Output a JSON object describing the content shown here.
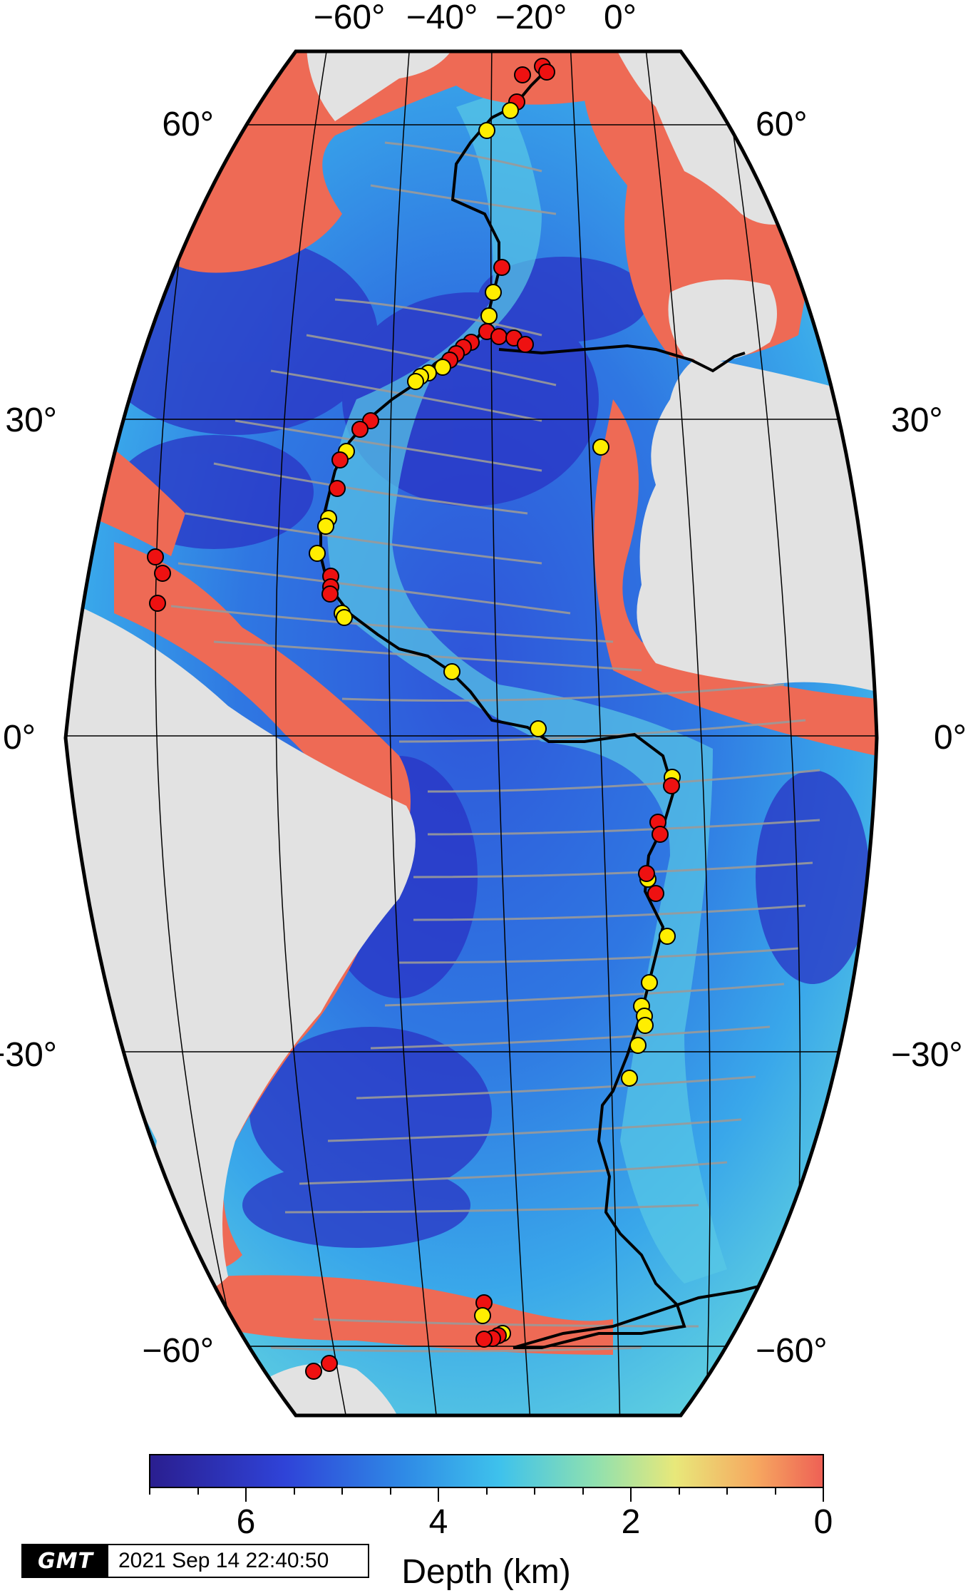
{
  "map": {
    "projection": "Sinusoidal Atlantic view",
    "lon_labels": [
      "−60°",
      "−40°",
      "−20°",
      "0°"
    ],
    "lat_labels_left": [
      "60°",
      "30°",
      "0°",
      "−30°",
      "−60°"
    ],
    "lat_labels_right": [
      "60°",
      "30°",
      "0°",
      "−30°",
      "−60°"
    ],
    "land_color": "#e2e2e2",
    "shelf_color": "#ee6a55",
    "ridge_color": "#000000",
    "fracture_color": "#9a9a9a",
    "marker_colors": {
      "red": "#ee1111",
      "yellow": "#ffee00"
    }
  },
  "colorbar": {
    "ticks": [
      "6",
      "4",
      "2",
      "0"
    ],
    "label": "Depth (km)",
    "stops": [
      "#2a1e8f",
      "#2f43d8",
      "#2f8be6",
      "#3ec2ec",
      "#8ee0b0",
      "#e8e87a",
      "#f6a860",
      "#ee6055"
    ]
  },
  "stamp": {
    "logo": "GMT",
    "timestamp": "2021 Sep 14 22:40:50"
  }
}
